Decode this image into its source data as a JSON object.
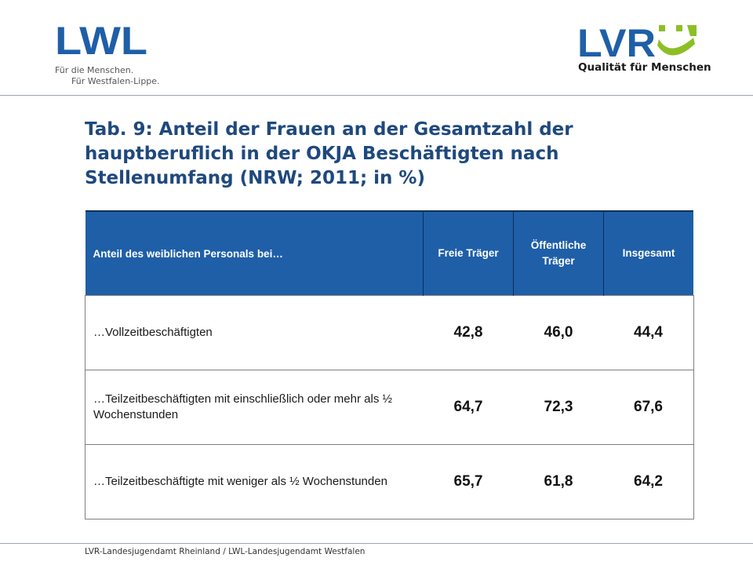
{
  "lwl_logo": {
    "wordmark": "LWL",
    "tagline_1": "Für die Menschen.",
    "tagline_2": "Für Westfalen-Lippe.",
    "color": "#1f5fa8"
  },
  "lvr_logo": {
    "wordmark": "LVR",
    "tagline": "Qualität für Menschen",
    "color_blue": "#1f5fa8",
    "color_green": "#8cbf26"
  },
  "title": "Tab. 9: Anteil der Frauen an der Gesamtzahl der hauptberuflich in der OKJA Beschäftigten nach Stellenumfang (NRW; 2011; in %)",
  "table": {
    "header_color": "#1f5fa8",
    "headers": {
      "label": "Anteil des weiblichen Personals bei…",
      "col1": "Freie Träger",
      "col2": "Öffentliche Träger",
      "col3": "Insgesamt"
    },
    "rows": [
      {
        "label": "…Vollzeitbeschäftigten",
        "freie": "42,8",
        "oeffentliche": "46,0",
        "insgesamt": "44,4"
      },
      {
        "label": "…Teilzeitbeschäftigten mit einschließlich oder mehr als ½ Wochenstunden",
        "freie": "64,7",
        "oeffentliche": "72,3",
        "insgesamt": "67,6"
      },
      {
        "label": "…Teilzeitbeschäftigte mit weniger als ½ Wochenstunden",
        "freie": "65,7",
        "oeffentliche": "61,8",
        "insgesamt": "64,2"
      }
    ]
  },
  "footer": "LVR-Landesjugendamt Rheinland / LWL-Landesjugendamt Westfalen"
}
